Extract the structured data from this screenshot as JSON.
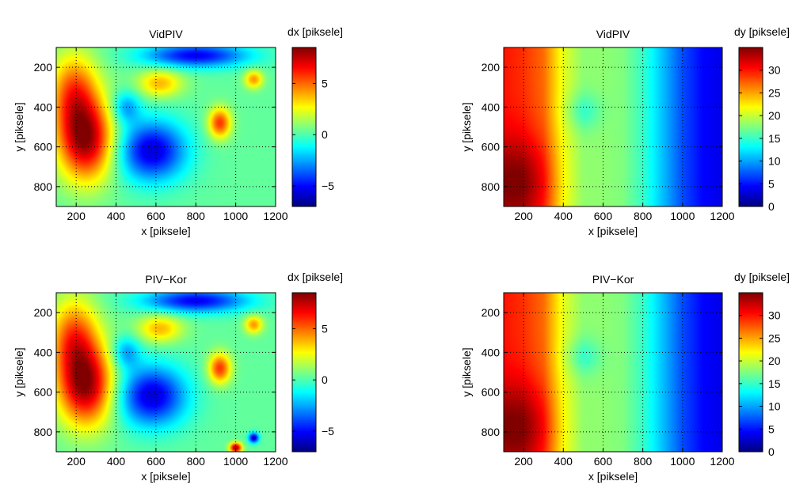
{
  "chart_data": [
    {
      "type": "heatmap",
      "title": "VidPIV",
      "xlabel": "x [piksele]",
      "ylabel": "y [piksele]",
      "colorbar_label": "dx [piksele]",
      "xlim": [
        100,
        1200
      ],
      "ylim": [
        900,
        100
      ],
      "xticks": [
        200,
        400,
        600,
        800,
        1000,
        1200
      ],
      "yticks": [
        200,
        400,
        600,
        800
      ],
      "clim": [
        -7,
        8.5
      ],
      "cticks": [
        -5,
        0,
        5
      ],
      "colormap": "jet",
      "grid": true,
      "features": [
        {
          "x": 250,
          "y": 570,
          "value": 7.5,
          "sx": 140,
          "sy": 200
        },
        {
          "x": 190,
          "y": 330,
          "value": 5,
          "sx": 120,
          "sy": 200
        },
        {
          "x": 620,
          "y": 280,
          "value": 3.5,
          "sx": 110,
          "sy": 70
        },
        {
          "x": 920,
          "y": 480,
          "value": 5.5,
          "sx": 55,
          "sy": 75
        },
        {
          "x": 1090,
          "y": 260,
          "value": 4,
          "sx": 45,
          "sy": 45
        },
        {
          "x": 580,
          "y": 620,
          "value": -6,
          "sx": 170,
          "sy": 150
        },
        {
          "x": 800,
          "y": 140,
          "value": -5.5,
          "sx": 260,
          "sy": 60
        },
        {
          "x": 450,
          "y": 400,
          "value": -3,
          "sx": 70,
          "sy": 80
        }
      ]
    },
    {
      "type": "heatmap",
      "title": "VidPIV",
      "xlabel": "x [piksele]",
      "ylabel": "y [piksele]",
      "colorbar_label": "dy [piksele]",
      "xlim": [
        100,
        1200
      ],
      "ylim": [
        900,
        100
      ],
      "xticks": [
        200,
        400,
        600,
        800,
        1000,
        1200
      ],
      "yticks": [
        200,
        400,
        600,
        800
      ],
      "clim": [
        0,
        35
      ],
      "cticks": [
        0,
        5,
        10,
        15,
        20,
        25,
        30
      ],
      "colormap": "jet",
      "grid": true,
      "profile_x": [
        100,
        200,
        300,
        400,
        500,
        600,
        700,
        800,
        900,
        1000,
        1100,
        1200
      ],
      "profile_value": [
        30,
        29,
        27,
        21,
        18,
        18,
        17.5,
        15,
        11,
        7,
        4.5,
        3.5
      ],
      "features": [
        {
          "x": 180,
          "y": 780,
          "value": 6,
          "sx": 170,
          "sy": 230
        },
        {
          "x": 500,
          "y": 420,
          "value": -3,
          "sx": 90,
          "sy": 90
        }
      ]
    },
    {
      "type": "heatmap",
      "title": "PIV−Kor",
      "xlabel": "x [piksele]",
      "ylabel": "y [piksele]",
      "colorbar_label": "dx [piksele]",
      "xlim": [
        100,
        1200
      ],
      "ylim": [
        900,
        100
      ],
      "xticks": [
        200,
        400,
        600,
        800,
        1000,
        1200
      ],
      "yticks": [
        200,
        400,
        600,
        800
      ],
      "clim": [
        -7,
        8.5
      ],
      "cticks": [
        -5,
        0,
        5
      ],
      "colormap": "jet",
      "grid": true,
      "features": [
        {
          "x": 250,
          "y": 570,
          "value": 7.5,
          "sx": 140,
          "sy": 200
        },
        {
          "x": 190,
          "y": 330,
          "value": 5,
          "sx": 120,
          "sy": 200
        },
        {
          "x": 620,
          "y": 280,
          "value": 3.5,
          "sx": 110,
          "sy": 70
        },
        {
          "x": 920,
          "y": 480,
          "value": 5.5,
          "sx": 55,
          "sy": 75
        },
        {
          "x": 1090,
          "y": 260,
          "value": 4,
          "sx": 45,
          "sy": 45
        },
        {
          "x": 580,
          "y": 620,
          "value": -6,
          "sx": 170,
          "sy": 150
        },
        {
          "x": 800,
          "y": 140,
          "value": -5.5,
          "sx": 260,
          "sy": 60
        },
        {
          "x": 450,
          "y": 400,
          "value": -3,
          "sx": 70,
          "sy": 80
        },
        {
          "x": 1000,
          "y": 880,
          "value": 8,
          "sx": 30,
          "sy": 25
        },
        {
          "x": 1090,
          "y": 830,
          "value": -6.5,
          "sx": 25,
          "sy": 25
        }
      ]
    },
    {
      "type": "heatmap",
      "title": "PIV−Kor",
      "xlabel": "x [piksele]",
      "ylabel": "y [piksele]",
      "colorbar_label": "dy [piksele]",
      "xlim": [
        100,
        1200
      ],
      "ylim": [
        900,
        100
      ],
      "xticks": [
        200,
        400,
        600,
        800,
        1000,
        1200
      ],
      "yticks": [
        200,
        400,
        600,
        800
      ],
      "clim": [
        0,
        35
      ],
      "cticks": [
        0,
        5,
        10,
        15,
        20,
        25,
        30
      ],
      "colormap": "jet",
      "grid": true,
      "profile_x": [
        100,
        200,
        300,
        400,
        500,
        600,
        700,
        800,
        900,
        1000,
        1100,
        1200
      ],
      "profile_value": [
        30,
        29,
        27,
        21,
        18,
        18,
        17.5,
        15,
        11,
        7,
        4.5,
        3.5
      ],
      "features": [
        {
          "x": 180,
          "y": 780,
          "value": 6,
          "sx": 170,
          "sy": 230
        },
        {
          "x": 500,
          "y": 420,
          "value": -3,
          "sx": 90,
          "sy": 90
        }
      ]
    }
  ]
}
